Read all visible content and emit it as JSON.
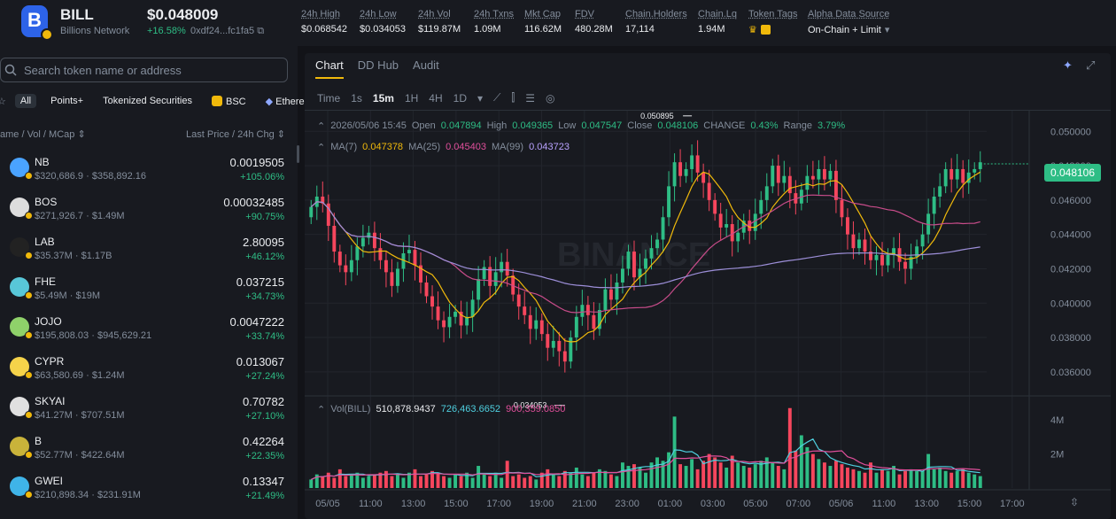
{
  "header": {
    "symbol": "BILL",
    "name": "Billions Network",
    "price": "$0.048009",
    "change": "+16.58%",
    "address": "0xdf24...fc1fa5",
    "stats": [
      {
        "label": "24h High",
        "value": "$0.068542"
      },
      {
        "label": "24h Low",
        "value": "$0.034053"
      },
      {
        "label": "24h Vol",
        "value": "$119.87M"
      },
      {
        "label": "24h Txns",
        "value": "1.09M"
      },
      {
        "label": "Mkt Cap",
        "value": "116.62M"
      },
      {
        "label": "FDV",
        "value": "480.28M"
      },
      {
        "label": "Chain.Holders",
        "value": "17,114"
      },
      {
        "label": "Chain.Lq",
        "value": "1.94M"
      },
      {
        "label": "Token Tags",
        "value": ""
      },
      {
        "label": "Alpha Data Source",
        "value": "On-Chain + Limit"
      }
    ]
  },
  "sidebar": {
    "search_placeholder": "Search token name or address",
    "filters": [
      "All",
      "Points+",
      "Tokenized Securities",
      "BSC",
      "Ethereu"
    ],
    "col_left": "ame / Vol / MCap",
    "col_right": "Last Price / 24h Chg",
    "tokens": [
      {
        "symbol": "NB",
        "sub": "$320,686.9 · $358,892.16",
        "price": "0.0019505",
        "change": "+105.06%",
        "color": "#4aa3ff"
      },
      {
        "symbol": "BOS",
        "sub": "$271,926.7 · $1.49M",
        "price": "0.00032485",
        "change": "+90.75%",
        "color": "#dddddd"
      },
      {
        "symbol": "LAB",
        "sub": "$35.37M · $1.17B",
        "price": "2.80095",
        "change": "+46.12%",
        "color": "#222222"
      },
      {
        "symbol": "FHE",
        "sub": "$5.49M · $19M",
        "price": "0.037215",
        "change": "+34.73%",
        "color": "#58c7d8"
      },
      {
        "symbol": "JOJO",
        "sub": "$195,808.03 · $945,629.21",
        "price": "0.0047222",
        "change": "+33.74%",
        "color": "#8fd16a"
      },
      {
        "symbol": "CYPR",
        "sub": "$63,580.69 · $1.24M",
        "price": "0.013067",
        "change": "+27.24%",
        "color": "#f5d34a"
      },
      {
        "symbol": "SKYAI",
        "sub": "$41.27M · $707.51M",
        "price": "0.70782",
        "change": "+27.10%",
        "color": "#e0e0e0"
      },
      {
        "symbol": "B",
        "sub": "$52.77M · $422.64M",
        "price": "0.42264",
        "change": "+22.35%",
        "color": "#c9b33a"
      },
      {
        "symbol": "GWEI",
        "sub": "$210,898.34 · $231.91M",
        "price": "0.13347",
        "change": "+21.49%",
        "color": "#3fb4e8"
      }
    ]
  },
  "chart_panel": {
    "tabs": [
      "Chart",
      "DD Hub",
      "Audit"
    ],
    "intervals": [
      "Time",
      "1s",
      "15m",
      "1H",
      "4H",
      "1D"
    ],
    "ohlc": {
      "date": "2026/05/06 15:45",
      "open_label": "Open",
      "open": "0.047894",
      "high_label": "High",
      "high": "0.049365",
      "low_label": "Low",
      "low": "0.047547",
      "close_label": "Close",
      "close": "0.048106",
      "change_label": "CHANGE",
      "change": "0.43%",
      "range_label": "Range",
      "range": "3.79%"
    },
    "ma": {
      "ma7_label": "MA(7)",
      "ma7": "0.047378",
      "ma25_label": "MA(25)",
      "ma25": "0.045403",
      "ma99_label": "MA(99)",
      "ma99": "0.043723"
    },
    "vol": {
      "label": "Vol(BILL)",
      "v1": "510,878.9437",
      "v2": "726,463.6652",
      "v3": "900,359.0850"
    },
    "last_price_tag": "0.048106",
    "max_label": "0.050895",
    "min_label": "0.034053",
    "watermark": "BINANCE"
  },
  "chart_data": {
    "type": "candlestick",
    "y_ticks": [
      "0.050000",
      "0.048000",
      "0.046000",
      "0.044000",
      "0.042000",
      "0.040000",
      "0.038000",
      "0.036000"
    ],
    "ylim": [
      0.0346,
      0.0512
    ],
    "x_ticks": [
      "05/05",
      "11:00",
      "13:00",
      "15:00",
      "17:00",
      "19:00",
      "21:00",
      "23:00",
      "01:00",
      "03:00",
      "05:00",
      "07:00",
      "05/06",
      "11:00",
      "13:00",
      "15:00",
      "17:00"
    ],
    "vol_ticks": [
      "4M",
      "2M"
    ],
    "vol_max": 5000000,
    "close": [
      0.0456,
      0.0462,
      0.0458,
      0.0445,
      0.043,
      0.0422,
      0.0418,
      0.0425,
      0.0433,
      0.0438,
      0.0441,
      0.0432,
      0.0425,
      0.0418,
      0.041,
      0.042,
      0.0429,
      0.0431,
      0.0422,
      0.0412,
      0.0404,
      0.0398,
      0.039,
      0.0386,
      0.0392,
      0.0395,
      0.0387,
      0.0392,
      0.0402,
      0.0414,
      0.0421,
      0.041,
      0.0418,
      0.0424,
      0.0416,
      0.0405,
      0.0398,
      0.0393,
      0.0385,
      0.039,
      0.0382,
      0.0374,
      0.0378,
      0.0372,
      0.0366,
      0.038,
      0.0392,
      0.0399,
      0.0393,
      0.0385,
      0.0396,
      0.0408,
      0.0402,
      0.0412,
      0.042,
      0.043,
      0.0415,
      0.042,
      0.0426,
      0.0432,
      0.0437,
      0.045,
      0.0468,
      0.0482,
      0.0474,
      0.0478,
      0.0486,
      0.0476,
      0.047,
      0.046,
      0.0452,
      0.0444,
      0.0446,
      0.0436,
      0.0441,
      0.0448,
      0.0442,
      0.0452,
      0.046,
      0.0468,
      0.048,
      0.047,
      0.0474,
      0.0464,
      0.0458,
      0.0466,
      0.0474,
      0.0472,
      0.0478,
      0.0472,
      0.0477,
      0.046,
      0.045,
      0.044,
      0.0432,
      0.0437,
      0.043,
      0.0425,
      0.0428,
      0.0422,
      0.0428,
      0.0432,
      0.0424,
      0.042,
      0.0427,
      0.0433,
      0.044,
      0.0452,
      0.0462,
      0.0468,
      0.0478,
      0.0472,
      0.0478,
      0.047,
      0.0476,
      0.0478,
      0.0482
    ],
    "volume": [
      500000,
      800000,
      700000,
      900000,
      600000,
      1100000,
      700000,
      800000,
      900000,
      600000,
      700000,
      800000,
      900000,
      1000000,
      700000,
      800000,
      600000,
      900000,
      1100000,
      700000,
      800000,
      1000000,
      900000,
      700000,
      600000,
      800000,
      700000,
      900000,
      600000,
      1300000,
      800000,
      700000,
      900000,
      600000,
      1600000,
      700000,
      800000,
      600000,
      700000,
      500000,
      900000,
      1100000,
      800000,
      700000,
      1000000,
      900000,
      1200000,
      800000,
      700000,
      900000,
      1100000,
      1000000,
      800000,
      700000,
      1500000,
      1300000,
      1400000,
      1200000,
      900000,
      1500000,
      1800000,
      1600000,
      2100000,
      4200000,
      1400000,
      1300000,
      1700000,
      1100000,
      1600000,
      2000000,
      1800000,
      1500000,
      1200000,
      1900000,
      1500000,
      1300000,
      1200000,
      1400000,
      1600000,
      1800000,
      1500000,
      1300000,
      1100000,
      4700000,
      2200000,
      3100000,
      2400000,
      2000000,
      1700000,
      1500000,
      1300000,
      1600000,
      1400000,
      1200000,
      1100000,
      1000000,
      900000,
      1500000,
      900000,
      1100000,
      1000000,
      1300000,
      800000,
      1000000,
      1100000,
      1000000,
      1000000,
      2000000,
      1100000,
      1200000,
      1000000,
      900000,
      1000000,
      1100000,
      900000,
      800000,
      700000
    ]
  }
}
